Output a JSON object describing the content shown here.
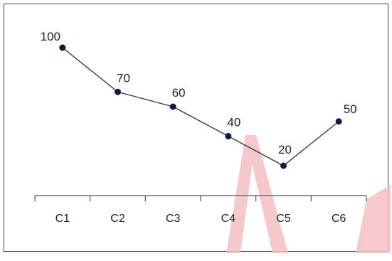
{
  "chart_data": {
    "type": "line",
    "categories": [
      "C1",
      "C2",
      "C3",
      "C4",
      "C5",
      "C6"
    ],
    "series": [
      {
        "values": [
          100,
          70,
          60,
          40,
          20,
          50
        ]
      }
    ],
    "data_labels": [
      "100",
      "70",
      "60",
      "40",
      "20",
      "50"
    ],
    "title": "",
    "xlabel": "",
    "ylabel": "",
    "ylim": [
      0,
      100
    ],
    "grid": false,
    "legend": "none",
    "line_color": "#3a3a3a",
    "marker_color": "#0d1b3d",
    "border_color": "#444444",
    "watermark_color": "#f2b8bd"
  }
}
